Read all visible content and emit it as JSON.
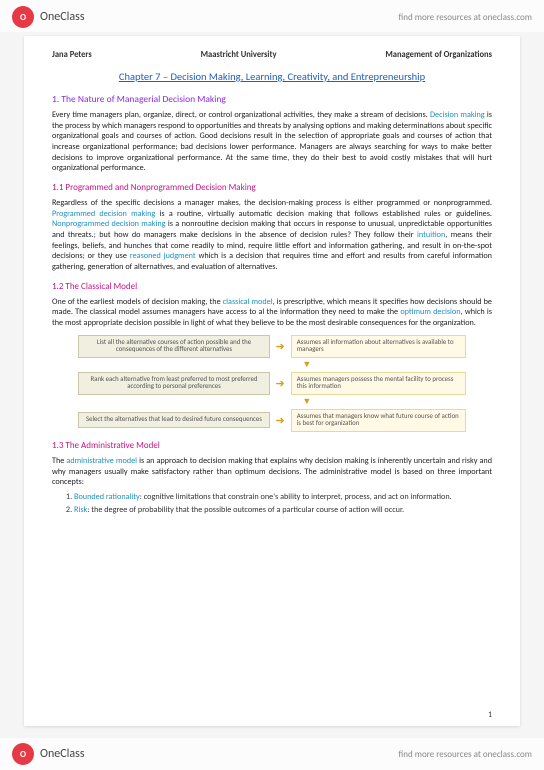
{
  "brand": {
    "logo_letters": "O",
    "name": "OneClass",
    "tagline": "find more resources at oneclass.com"
  },
  "header": {
    "author": "Jana Peters",
    "university": "Maastricht University",
    "course": "Management of Organizations"
  },
  "chapter_title": "Chapter 7 – Decision Making, Learning, Creativity, and Entrepreneurship",
  "sec1": {
    "title": "1. The Nature of Managerial Decision Making",
    "para": "Every time managers plan, organize, direct, or control organizational activities, they make a stream of decisions. ",
    "term1": "Decision making",
    "para_cont": " is the process by which managers respond to opportunities and threats by analysing options and making determinations about specific organizational goals and courses of action. Good decisions result in the selection of appropriate goals and courses of action that increase organizational performance; bad decisions lower performance. Managers are always searching for ways to make better decisions to improve organizational performance. At the same time, they do their best to avoid costly mistakes that will hurt organizational performance."
  },
  "sec11": {
    "title": "1.1 Programmed and Nonprogrammed Decision Making",
    "p_a": "Regardless of the specific decisions a manager makes, the decision-making process is either programmed or nonprogrammed. ",
    "t1": "Programmed decision making",
    "p_b": " is a routine, virtually automatic decision making that follows established rules or guidelines. ",
    "t2": "Nonprogrammed decision making",
    "p_c": " is a nonroutine decision making that occurs in response to unusual, unpredictable opportunities and threats.; but how do managers make decisions in the absence of decision rules? They follow their ",
    "t3": "intuition",
    "p_d": ", means their feelings, beliefs, and hunches that come readily to mind, require little effort and information gathering, and result in on-the-spot decisions; or they use ",
    "t4": "reasoned judgment",
    "p_e": " which is a decision that requires time and effort and results from careful information gathering, generation of alternatives, and evaluation of alternatives."
  },
  "sec12": {
    "title": "1.2 The Classical Model",
    "p_a": "One of the earliest models of decision making, the ",
    "t1": "classical model",
    "p_b": ", is prescriptive, which means it specifies how decisions should be made. The classical model assumes managers have access to al the information they need to make the ",
    "t2": "optimum decision",
    "p_c": ", which is the most appropriate decision possible in light of what they believe to be the most desirable consequences for the organization."
  },
  "diagram": {
    "rows": [
      {
        "left": "List all the alternative courses of action possible and the consequences of the different alternatives",
        "right": "Assumes all information about alternatives is available to managers"
      },
      {
        "left": "Rank each alternative from least preferred to most preferred according to personal preferences",
        "right": "Assumes managers possess the mental facility to process this information"
      },
      {
        "left": "Select the alternatives that lead to desired future consequences",
        "right": "Assumes that managers know what future course of action is best for organization"
      }
    ]
  },
  "sec13": {
    "title": "1.3 The Administrative Model",
    "p_a": "The ",
    "t1": "administrative model",
    "p_b": " is an approach to decision making that explains why decision making is inherently uncertain and risky and why managers usually make satisfactory rather than optimum decisions. The administrative model is based on three important concepts:",
    "c1_t": "Bounded rationality",
    "c1_b": ": cognitive limitations that constrain one's ability to interpret, process, and act on information.",
    "c2_t": "Risk",
    "c2_b": ": the degree of probability that the possible outcomes of a particular course of action will occur."
  },
  "page_number": "1"
}
